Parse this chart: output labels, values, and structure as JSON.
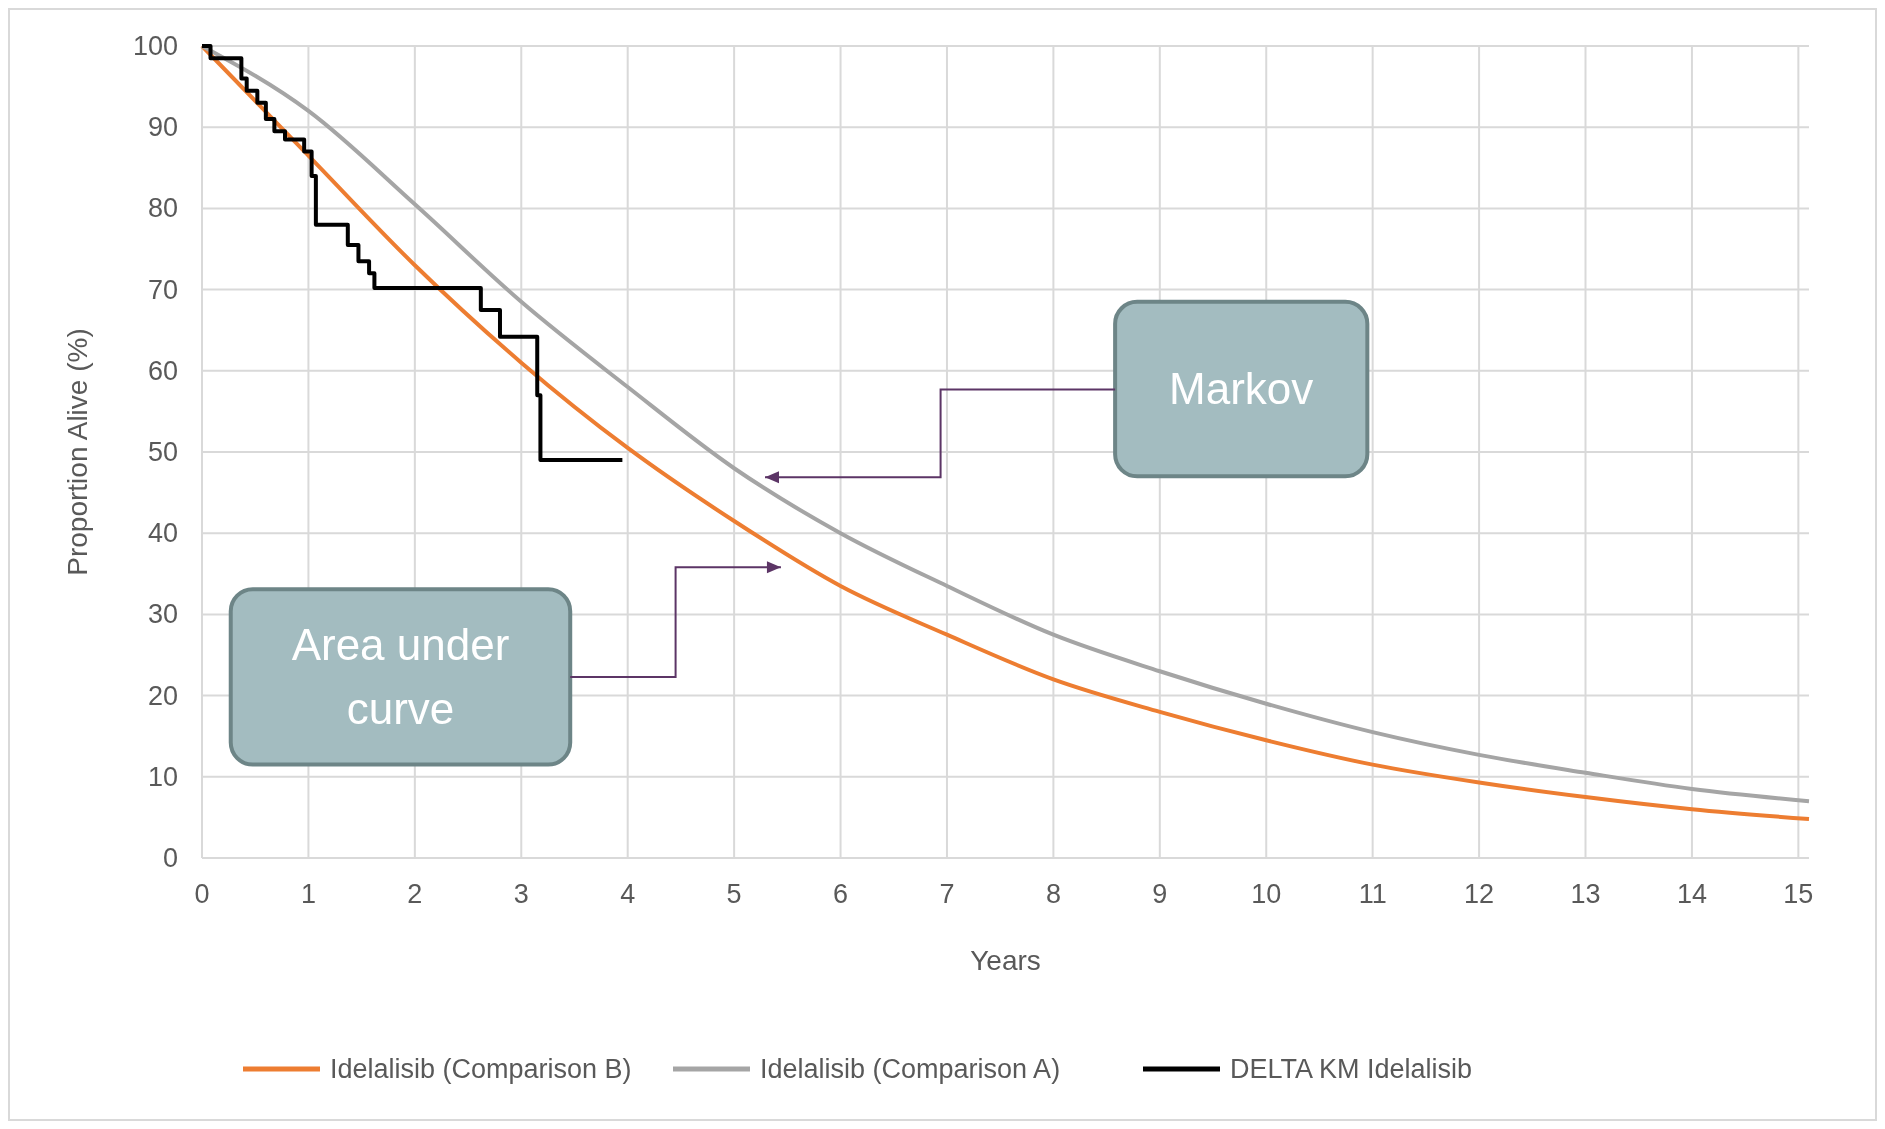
{
  "chart_data": {
    "type": "line",
    "xlabel": "Years",
    "ylabel": "Proportion Alive (%)",
    "xlim": [
      0,
      15.1
    ],
    "xticks": [
      0,
      1,
      2,
      3,
      4,
      5,
      6,
      7,
      8,
      9,
      10,
      11,
      12,
      13,
      14,
      15
    ],
    "ylim": [
      0,
      100
    ],
    "yticks": [
      0,
      10,
      20,
      30,
      40,
      50,
      60,
      70,
      80,
      90,
      100
    ],
    "grid": true,
    "legend": "bottom",
    "marker": "none",
    "line_style": "solid",
    "annotations": [
      "Markov",
      "Area under curve"
    ],
    "series": [
      {
        "name": "Idelalisib (Comparison B)",
        "color": "#ed7d31",
        "x": [
          0,
          1,
          2,
          3,
          4,
          5,
          6,
          7,
          8,
          9,
          10,
          11,
          12,
          13,
          14,
          15.1
        ],
        "values": [
          100,
          86.5,
          73,
          61,
          50.5,
          41.5,
          33.5,
          27.5,
          22,
          18,
          14.5,
          11.5,
          9.3,
          7.5,
          6,
          4.8
        ]
      },
      {
        "name": "Idelalisib (Comparison A)",
        "color": "#a5a5a5",
        "x": [
          0,
          1,
          2,
          3,
          4,
          5,
          6,
          7,
          8,
          9,
          10,
          11,
          12,
          13,
          14,
          15.1
        ],
        "values": [
          100,
          92,
          80.5,
          68.5,
          58,
          48,
          40,
          33.5,
          27.5,
          23,
          19,
          15.5,
          12.7,
          10.5,
          8.5,
          7
        ]
      },
      {
        "name": "DELTA KM Idelalisib",
        "type": "step",
        "color": "#000000",
        "x": [
          0,
          0.08,
          0.37,
          0.42,
          0.52,
          0.6,
          0.68,
          0.78,
          0.96,
          1.03,
          1.07,
          1.37,
          1.47,
          1.57,
          1.62,
          2.62,
          2.8,
          3.15,
          3.18,
          3.95
        ],
        "values": [
          100,
          98.5,
          96,
          94.5,
          93,
          91,
          89.5,
          88.5,
          87,
          84,
          78,
          75.5,
          73.5,
          72,
          70.2,
          67.5,
          64.2,
          57,
          49,
          49
        ]
      }
    ]
  }
}
